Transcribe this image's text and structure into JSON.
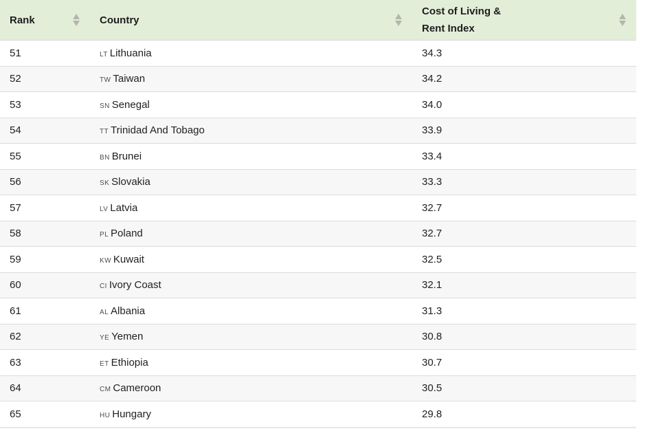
{
  "table": {
    "columns": [
      {
        "label": "Rank"
      },
      {
        "label": "Country"
      },
      {
        "label": "Cost of Living & Rent Index"
      }
    ],
    "rows": [
      {
        "rank": "51",
        "code": "LT",
        "country": "Lithuania",
        "value": "34.3"
      },
      {
        "rank": "52",
        "code": "TW",
        "country": "Taiwan",
        "value": "34.2"
      },
      {
        "rank": "53",
        "code": "SN",
        "country": "Senegal",
        "value": "34.0"
      },
      {
        "rank": "54",
        "code": "TT",
        "country": "Trinidad And Tobago",
        "value": "33.9"
      },
      {
        "rank": "55",
        "code": "BN",
        "country": "Brunei",
        "value": "33.4"
      },
      {
        "rank": "56",
        "code": "SK",
        "country": "Slovakia",
        "value": "33.3"
      },
      {
        "rank": "57",
        "code": "LV",
        "country": "Latvia",
        "value": "32.7"
      },
      {
        "rank": "58",
        "code": "PL",
        "country": "Poland",
        "value": "32.7"
      },
      {
        "rank": "59",
        "code": "KW",
        "country": "Kuwait",
        "value": "32.5"
      },
      {
        "rank": "60",
        "code": "CI",
        "country": "Ivory Coast",
        "value": "32.1"
      },
      {
        "rank": "61",
        "code": "AL",
        "country": "Albania",
        "value": "31.3"
      },
      {
        "rank": "62",
        "code": "YE",
        "country": "Yemen",
        "value": "30.8"
      },
      {
        "rank": "63",
        "code": "ET",
        "country": "Ethiopia",
        "value": "30.7"
      },
      {
        "rank": "64",
        "code": "CM",
        "country": "Cameroon",
        "value": "30.5"
      },
      {
        "rank": "65",
        "code": "HU",
        "country": "Hungary",
        "value": "29.8"
      }
    ]
  },
  "icons": {
    "sort": "sort-arrows-up-down"
  },
  "colors": {
    "header_bg": "#e3eed9",
    "alt_row_bg": "#f7f7f7",
    "row_bg": "#ffffff",
    "separator": "#dcdcdc",
    "text": "#212121",
    "header_text": "#1d1d1d",
    "country_code_text": "#4d4d4d",
    "sort_arrow": "#b2b6ab"
  }
}
